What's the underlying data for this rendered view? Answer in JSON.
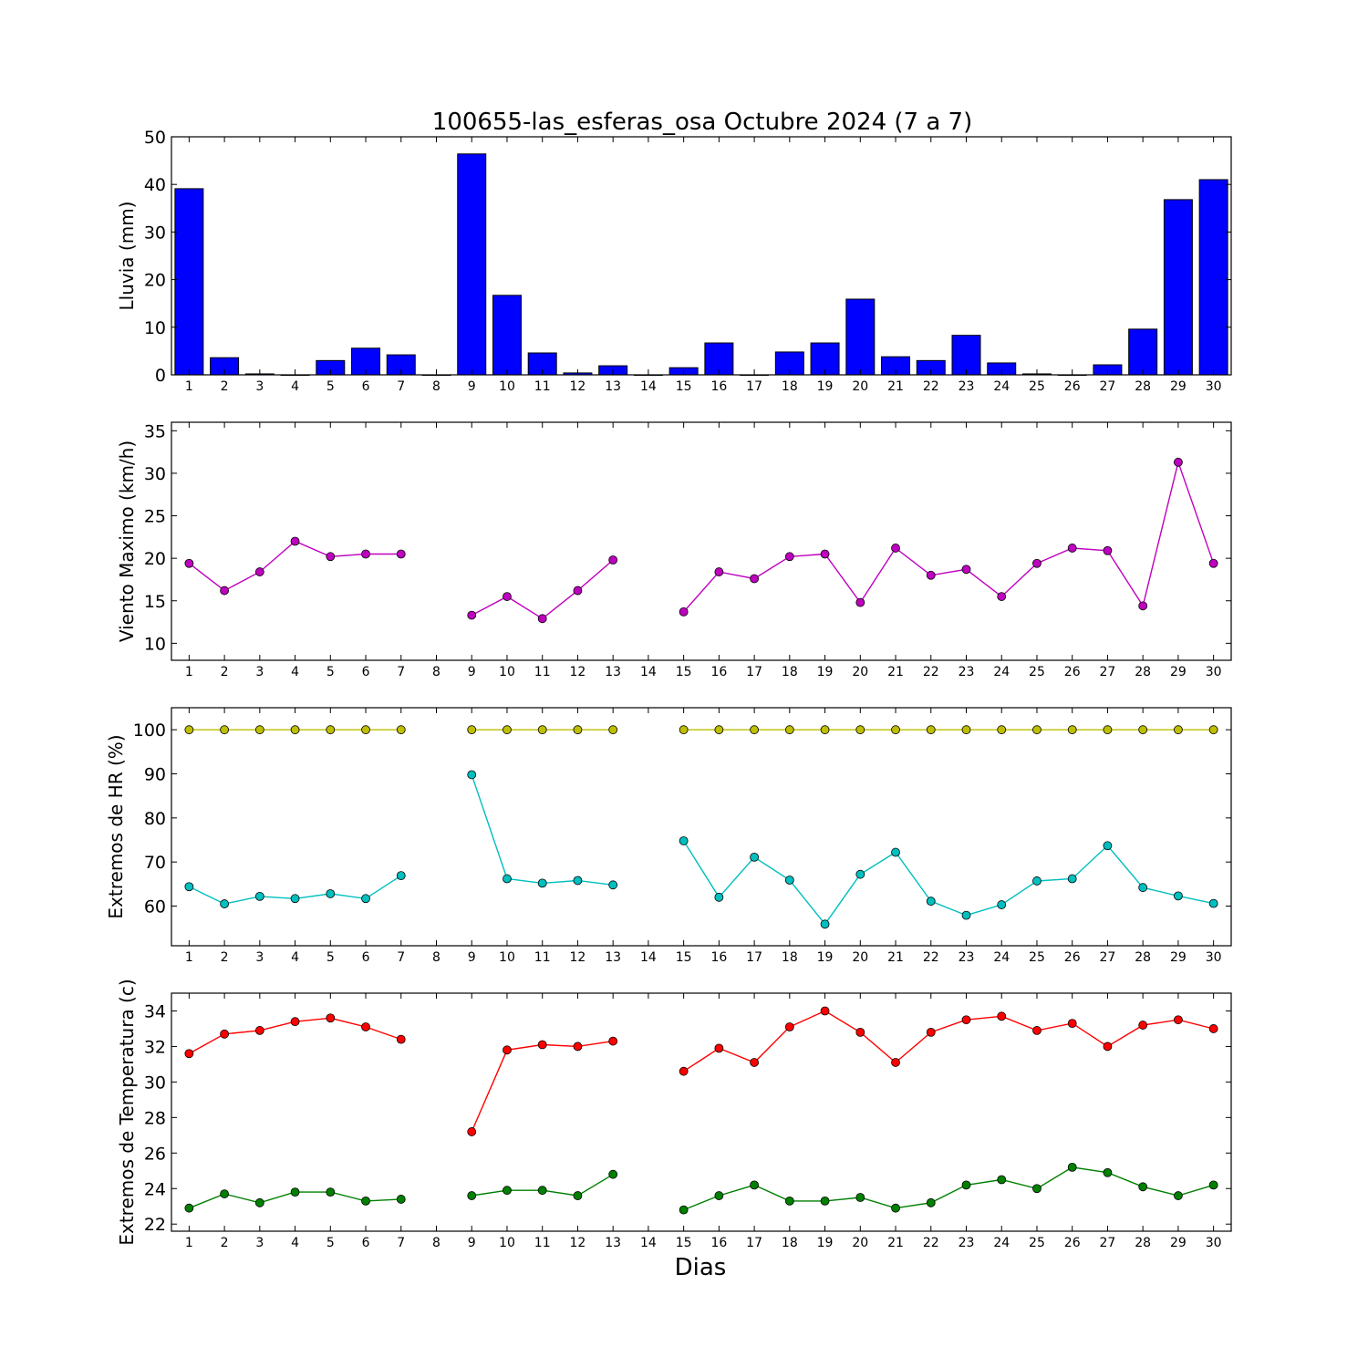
{
  "title": "100655-las_esferas_osa Octubre 2024  (7 a 7)",
  "xlabel": "Dias",
  "chart_data": [
    {
      "type": "bar",
      "ylabel": "Lluvia (mm)",
      "ylim": [
        0,
        50
      ],
      "yticks": [
        0,
        10,
        20,
        30,
        40,
        50
      ],
      "xticks": [
        1,
        2,
        3,
        4,
        5,
        6,
        7,
        8,
        9,
        10,
        11,
        12,
        13,
        14,
        15,
        16,
        17,
        18,
        19,
        20,
        21,
        22,
        23,
        24,
        25,
        26,
        27,
        28,
        29,
        30
      ],
      "grid": false,
      "series": [
        {
          "color": "#0000ff",
          "x": [
            1,
            2,
            3,
            4,
            5,
            6,
            7,
            8,
            9,
            10,
            11,
            12,
            13,
            14,
            15,
            16,
            17,
            18,
            19,
            20,
            21,
            22,
            23,
            24,
            25,
            26,
            27,
            28,
            29,
            30
          ],
          "y": [
            39.1,
            3.6,
            0.2,
            0,
            3.0,
            5.6,
            4.2,
            0,
            46.4,
            16.7,
            4.6,
            0.4,
            1.9,
            0,
            1.5,
            6.7,
            0,
            4.8,
            6.7,
            15.9,
            3.8,
            3.0,
            8.3,
            2.5,
            0.2,
            0,
            2.1,
            9.6,
            36.8,
            41.0
          ]
        }
      ]
    },
    {
      "type": "line",
      "ylabel": "Viento Maximo (km/h)",
      "ylim": [
        8,
        36
      ],
      "yticks": [
        10,
        15,
        20,
        25,
        30,
        35
      ],
      "xticks": [
        1,
        2,
        3,
        4,
        5,
        6,
        7,
        8,
        9,
        10,
        11,
        12,
        13,
        14,
        15,
        16,
        17,
        18,
        19,
        20,
        21,
        22,
        23,
        24,
        25,
        26,
        27,
        28,
        29,
        30
      ],
      "grid": false,
      "series": [
        {
          "color": "#bf00bf",
          "x": [
            1,
            2,
            3,
            4,
            5,
            6,
            7,
            8,
            9,
            10,
            11,
            12,
            13,
            14,
            15,
            16,
            17,
            18,
            19,
            20,
            21,
            22,
            23,
            24,
            25,
            26,
            27,
            28,
            29,
            30
          ],
          "y": [
            19.4,
            16.2,
            18.4,
            22.0,
            20.2,
            20.5,
            20.5,
            null,
            13.3,
            15.5,
            12.9,
            16.2,
            19.8,
            null,
            13.7,
            18.4,
            17.6,
            20.2,
            20.5,
            14.8,
            21.2,
            18.0,
            18.7,
            15.5,
            19.4,
            21.2,
            20.9,
            14.4,
            31.3,
            19.4
          ]
        }
      ]
    },
    {
      "type": "line",
      "ylabel": "Extremos de HR (%)",
      "ylim": [
        51,
        105
      ],
      "yticks": [
        60,
        70,
        80,
        90,
        100
      ],
      "xticks": [
        1,
        2,
        3,
        4,
        5,
        6,
        7,
        8,
        9,
        10,
        11,
        12,
        13,
        14,
        15,
        16,
        17,
        18,
        19,
        20,
        21,
        22,
        23,
        24,
        25,
        26,
        27,
        28,
        29,
        30
      ],
      "grid": false,
      "series": [
        {
          "color": "#bfbf00",
          "x": [
            1,
            2,
            3,
            4,
            5,
            6,
            7,
            8,
            9,
            10,
            11,
            12,
            13,
            14,
            15,
            16,
            17,
            18,
            19,
            20,
            21,
            22,
            23,
            24,
            25,
            26,
            27,
            28,
            29,
            30
          ],
          "y": [
            100,
            100,
            100,
            100,
            100,
            100,
            100,
            null,
            100,
            100,
            100,
            100,
            100,
            null,
            100,
            100,
            100,
            100,
            100,
            100,
            100,
            100,
            100,
            100,
            100,
            100,
            100,
            100,
            100,
            100
          ]
        },
        {
          "color": "#00bfbf",
          "x": [
            1,
            2,
            3,
            4,
            5,
            6,
            7,
            8,
            9,
            10,
            11,
            12,
            13,
            14,
            15,
            16,
            17,
            18,
            19,
            20,
            21,
            22,
            23,
            24,
            25,
            26,
            27,
            28,
            29,
            30
          ],
          "y": [
            64.4,
            60.5,
            62.2,
            61.7,
            62.8,
            61.7,
            66.9,
            null,
            89.8,
            66.2,
            65.2,
            65.8,
            64.8,
            null,
            74.8,
            62.0,
            71.1,
            65.9,
            55.9,
            67.2,
            72.2,
            61.1,
            57.9,
            60.3,
            65.7,
            66.2,
            73.7,
            64.2,
            62.3,
            60.6
          ]
        }
      ]
    },
    {
      "type": "line",
      "ylabel": "Extremos de Temperatura (c)",
      "ylim": [
        21.6,
        35.0
      ],
      "yticks": [
        22,
        24,
        26,
        28,
        30,
        32,
        34
      ],
      "xticks": [
        1,
        2,
        3,
        4,
        5,
        6,
        7,
        8,
        9,
        10,
        11,
        12,
        13,
        14,
        15,
        16,
        17,
        18,
        19,
        20,
        21,
        22,
        23,
        24,
        25,
        26,
        27,
        28,
        29,
        30
      ],
      "grid": false,
      "series": [
        {
          "color": "#ff0000",
          "x": [
            1,
            2,
            3,
            4,
            5,
            6,
            7,
            8,
            9,
            10,
            11,
            12,
            13,
            14,
            15,
            16,
            17,
            18,
            19,
            20,
            21,
            22,
            23,
            24,
            25,
            26,
            27,
            28,
            29,
            30
          ],
          "y": [
            31.6,
            32.7,
            32.9,
            33.4,
            33.6,
            33.1,
            32.4,
            null,
            27.2,
            31.8,
            32.1,
            32.0,
            32.3,
            null,
            30.6,
            31.9,
            31.1,
            33.1,
            34.0,
            32.8,
            31.1,
            32.8,
            33.5,
            33.7,
            32.9,
            33.3,
            32.0,
            33.2,
            33.5,
            33.0
          ]
        },
        {
          "color": "#008000",
          "x": [
            1,
            2,
            3,
            4,
            5,
            6,
            7,
            8,
            9,
            10,
            11,
            12,
            13,
            14,
            15,
            16,
            17,
            18,
            19,
            20,
            21,
            22,
            23,
            24,
            25,
            26,
            27,
            28,
            29,
            30
          ],
          "y": [
            22.9,
            23.7,
            23.2,
            23.8,
            23.8,
            23.3,
            23.4,
            null,
            23.6,
            23.9,
            23.9,
            23.6,
            24.8,
            null,
            22.8,
            23.6,
            24.2,
            23.3,
            23.3,
            23.5,
            22.9,
            23.2,
            24.2,
            24.5,
            24.0,
            25.2,
            24.9,
            24.1,
            23.6,
            24.2
          ]
        }
      ]
    }
  ]
}
